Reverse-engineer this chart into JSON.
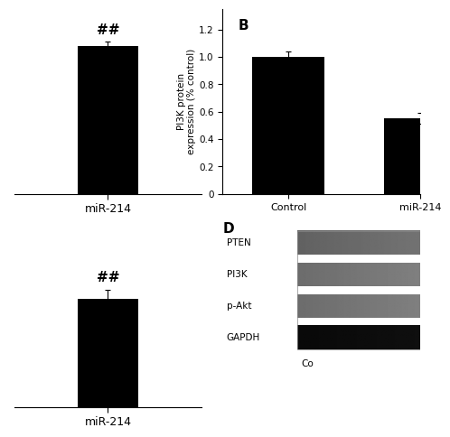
{
  "panel_A": {
    "bar_value": 1.0,
    "bar_error": 0.03,
    "bar_color": "#000000",
    "xlabel": "miR-214",
    "annotation": "##",
    "ylim": [
      0,
      1.25
    ],
    "yticks": []
  },
  "panel_B": {
    "categories": [
      "Control",
      "miR-214"
    ],
    "values": [
      1.0,
      0.55
    ],
    "errors": [
      0.04,
      0.04
    ],
    "bar_color": "#000000",
    "ylabel": "PI3K protein\nexpression (% control)",
    "yticks": [
      0,
      0.2,
      0.4,
      0.6,
      0.8,
      1.0,
      1.2
    ],
    "ylim": [
      0,
      1.35
    ],
    "label": "B"
  },
  "panel_C": {
    "bar_value": 0.38,
    "bar_error": 0.03,
    "bar_color": "#000000",
    "xlabel": "miR-214",
    "annotation": "##",
    "ylim": [
      0,
      0.65
    ],
    "yticks": []
  },
  "panel_D": {
    "label": "D",
    "proteins": [
      "PTEN",
      "PI3K",
      "p-Akt",
      "GAPDH"
    ],
    "band_grays": [
      0.45,
      0.5,
      0.5,
      0.05
    ],
    "xlabel_bottom": "Co"
  },
  "figure_bg": "#ffffff"
}
